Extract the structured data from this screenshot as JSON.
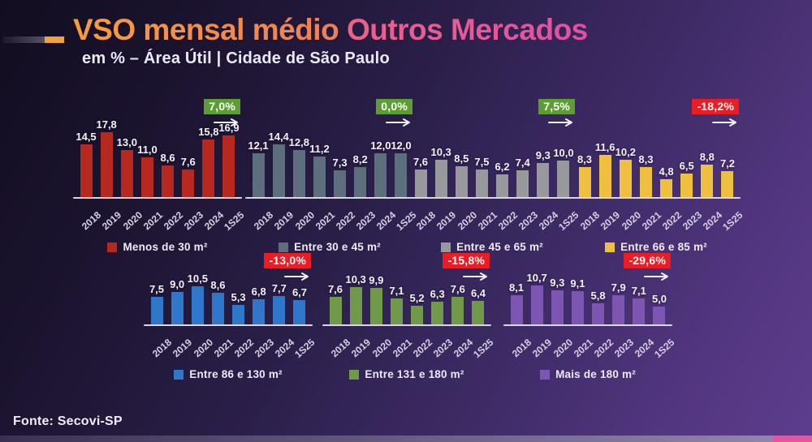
{
  "header": {
    "title_part1": "VSO mensal médio ",
    "title_part2": "Outros Mercados",
    "subtitle": "em % – Área Útil | Cidade de São Paulo"
  },
  "footer": {
    "source": "Fonte: Secovi-SP"
  },
  "colors": {
    "badge_positive": "#5c9e33",
    "badge_negative": "#ec1c24",
    "accent_pink": "#e8549c",
    "axis_line": "#d9d5e2",
    "title_gradient": [
      "#f59d3d",
      "#ee7e58",
      "#ec6286",
      "#e150a4"
    ]
  },
  "chart_data": [
    {
      "type": "bar",
      "legend": "Menos de 30 m²",
      "color": "#b7281e",
      "badge": {
        "label": "7,0%",
        "direction": "positive"
      },
      "categories": [
        "2018",
        "2019",
        "2020",
        "2021",
        "2022",
        "2023",
        "2024",
        "1S25"
      ],
      "values": [
        14.5,
        17.8,
        13.0,
        11.0,
        8.6,
        7.6,
        15.8,
        16.9
      ],
      "value_labels": [
        "14,5",
        "17,8",
        "13,0",
        "11,0",
        "8,6",
        "7,6",
        "15,8",
        "16,9"
      ],
      "ylim": [
        0,
        18
      ]
    },
    {
      "type": "bar",
      "legend": "Entre 30 e 45 m²",
      "color": "#5d6e7d",
      "badge": {
        "label": "0,0%",
        "direction": "positive"
      },
      "categories": [
        "2018",
        "2019",
        "2020",
        "2021",
        "2022",
        "2023",
        "2024",
        "1S25"
      ],
      "values": [
        12.1,
        14.4,
        12.8,
        11.2,
        7.3,
        8.2,
        12.0,
        12.0
      ],
      "value_labels": [
        "12,1",
        "14,4",
        "12,8",
        "11,2",
        "7,3",
        "8,2",
        "12,0",
        "12,0"
      ],
      "ylim": [
        0,
        18
      ]
    },
    {
      "type": "bar",
      "legend": "Entre 45 e 65 m²",
      "color": "#97999c",
      "badge": {
        "label": "7,5%",
        "direction": "positive"
      },
      "categories": [
        "2018",
        "2019",
        "2020",
        "2021",
        "2022",
        "2023",
        "2024",
        "1S25"
      ],
      "values": [
        7.6,
        10.3,
        8.5,
        7.5,
        6.2,
        7.4,
        9.3,
        10.0
      ],
      "value_labels": [
        "7,6",
        "10,3",
        "8,5",
        "7,5",
        "6,2",
        "7,4",
        "9,3",
        "10,0"
      ],
      "ylim": [
        0,
        18
      ]
    },
    {
      "type": "bar",
      "legend": "Entre 66 e 85 m²",
      "color": "#efbf3f",
      "badge": {
        "label": "-18,2%",
        "direction": "negative"
      },
      "categories": [
        "2018",
        "2019",
        "2020",
        "2021",
        "2022",
        "2023",
        "2024",
        "1S25"
      ],
      "values": [
        8.3,
        11.6,
        10.2,
        8.3,
        4.8,
        6.5,
        8.8,
        7.2
      ],
      "value_labels": [
        "8,3",
        "11,6",
        "10,2",
        "8,3",
        "4,8",
        "6,5",
        "8,8",
        "7,2"
      ],
      "ylim": [
        0,
        18
      ]
    },
    {
      "type": "bar",
      "legend": "Entre 86 e 130 m²",
      "color": "#2f77cb",
      "badge": {
        "label": "-13,0%",
        "direction": "negative"
      },
      "categories": [
        "2018",
        "2019",
        "2020",
        "2021",
        "2022",
        "2023",
        "2024",
        "1S25"
      ],
      "values": [
        7.5,
        9.0,
        10.5,
        8.6,
        5.3,
        6.8,
        7.7,
        6.7
      ],
      "value_labels": [
        "7,5",
        "9,0",
        "10,5",
        "8,6",
        "5,3",
        "6,8",
        "7,7",
        "6,7"
      ],
      "ylim": [
        0,
        11
      ]
    },
    {
      "type": "bar",
      "legend": "Entre 131 e 180 m²",
      "color": "#70994a",
      "badge": {
        "label": "-15,8%",
        "direction": "negative"
      },
      "categories": [
        "2018",
        "2019",
        "2020",
        "2021",
        "2022",
        "2023",
        "2024",
        "1S25"
      ],
      "values": [
        7.6,
        10.3,
        9.9,
        7.1,
        5.2,
        6.3,
        7.6,
        6.4
      ],
      "value_labels": [
        "7,6",
        "10,3",
        "9,9",
        "7,1",
        "5,2",
        "6,3",
        "7,6",
        "6,4"
      ],
      "ylim": [
        0,
        11
      ]
    },
    {
      "type": "bar",
      "legend": "Mais de 180 m²",
      "color": "#7d55b2",
      "badge": {
        "label": "-29,6%",
        "direction": "negative"
      },
      "categories": [
        "2018",
        "2019",
        "2020",
        "2021",
        "2022",
        "2023",
        "2024",
        "1S25"
      ],
      "values": [
        8.1,
        10.7,
        9.3,
        9.1,
        5.8,
        7.9,
        7.1,
        5.0
      ],
      "value_labels": [
        "8,1",
        "10,7",
        "9,3",
        "9,1",
        "5,8",
        "7,9",
        "7,1",
        "5,0"
      ],
      "ylim": [
        0,
        11
      ]
    }
  ]
}
